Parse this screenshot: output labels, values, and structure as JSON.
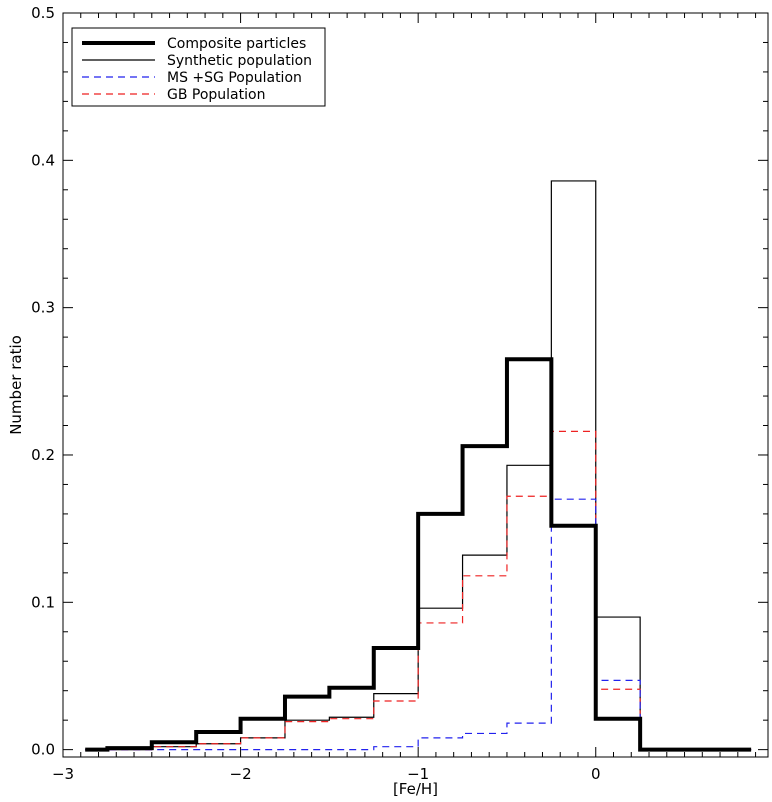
{
  "chart_data": {
    "type": "line",
    "title": "",
    "xlabel": "[Fe/H]",
    "ylabel": "Number ratio",
    "xlim": [
      -3.0,
      0.97
    ],
    "ylim": [
      -0.005,
      0.5
    ],
    "x_ticks": [
      -3,
      -2,
      -1,
      0
    ],
    "x_tick_labels": [
      "−3",
      "−2",
      "−1",
      "0"
    ],
    "y_ticks": [
      0.0,
      0.1,
      0.2,
      0.3,
      0.4,
      0.5
    ],
    "y_tick_labels": [
      "0.0",
      "0.1",
      "0.2",
      "0.3",
      "0.4",
      "0.5"
    ],
    "grid": false,
    "legend_position": "top-left",
    "bin_edges": [
      -2.875,
      -2.75,
      -2.5,
      -2.25,
      -2.0,
      -1.75,
      -1.5,
      -1.25,
      -1.0,
      -0.75,
      -0.5,
      -0.25,
      0.0,
      0.25,
      0.5,
      0.875
    ],
    "series": [
      {
        "name": "Composite particles",
        "color": "#000000",
        "style": "solid-thick",
        "values": [
          0.0,
          0.001,
          0.005,
          0.012,
          0.021,
          0.036,
          0.042,
          0.069,
          0.16,
          0.206,
          0.265,
          0.152,
          0.021,
          0.0,
          0.0
        ]
      },
      {
        "name": "Synthetic population",
        "color": "#000000",
        "style": "solid-thin",
        "values": [
          0.0,
          0.0,
          0.002,
          0.004,
          0.008,
          0.02,
          0.022,
          0.038,
          0.096,
          0.132,
          0.193,
          0.386,
          0.09,
          0.0,
          0.0
        ]
      },
      {
        "name": "MS +SG Population",
        "color": "#2222ee",
        "style": "dashed",
        "values": [
          0.0,
          0.0,
          0.0,
          0.0,
          0.0,
          0.0,
          0.0,
          0.002,
          0.008,
          0.011,
          0.018,
          0.17,
          0.047,
          0.0,
          0.0
        ]
      },
      {
        "name": "GB Population",
        "color": "#ee2222",
        "style": "dashed",
        "values": [
          0.0,
          0.0,
          0.002,
          0.004,
          0.008,
          0.019,
          0.021,
          0.033,
          0.086,
          0.118,
          0.172,
          0.216,
          0.041,
          0.0,
          0.0
        ]
      }
    ]
  }
}
